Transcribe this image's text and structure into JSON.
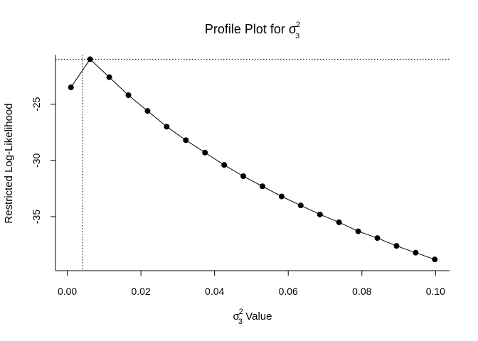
{
  "chart_data": {
    "type": "line",
    "title": {
      "prefix": "Profile Plot for ",
      "symbol": "σ",
      "superscript": "2",
      "subscript": "3"
    },
    "xlabel": {
      "symbol": "σ",
      "superscript": "2",
      "subscript": "3",
      "suffix": " Value"
    },
    "ylabel": "Restricted Log-Likelihood",
    "xlim": [
      -0.0032,
      0.1038
    ],
    "ylim": [
      -39.8,
      -20.6
    ],
    "xticks": [
      0.0,
      0.02,
      0.04,
      0.06,
      0.08,
      0.1
    ],
    "xtick_labels": [
      "0.00",
      "0.02",
      "0.04",
      "0.06",
      "0.08",
      "0.10"
    ],
    "yticks": [
      -25,
      -30,
      -35
    ],
    "ytick_labels": [
      "-25",
      "-30",
      "-35"
    ],
    "x": [
      0.001,
      0.0062,
      0.0114,
      0.0166,
      0.0218,
      0.027,
      0.0322,
      0.0374,
      0.0426,
      0.0478,
      0.053,
      0.0582,
      0.0634,
      0.0686,
      0.0738,
      0.079,
      0.0842,
      0.0894,
      0.0946,
      0.0998
    ],
    "y": [
      -23.5,
      -21.0,
      -22.6,
      -24.2,
      -25.6,
      -27.0,
      -28.2,
      -29.3,
      -30.4,
      -31.4,
      -32.3,
      -33.2,
      -34.0,
      -34.8,
      -35.5,
      -36.3,
      -36.9,
      -37.6,
      -38.2,
      -38.8
    ],
    "reference_lines": {
      "vertical_x": 0.0042,
      "horizontal_y": -21.0,
      "style": "dotted"
    },
    "grid": false,
    "marker": "filled-circle",
    "colors": {
      "line": "#000000",
      "marker": "#000000"
    }
  }
}
